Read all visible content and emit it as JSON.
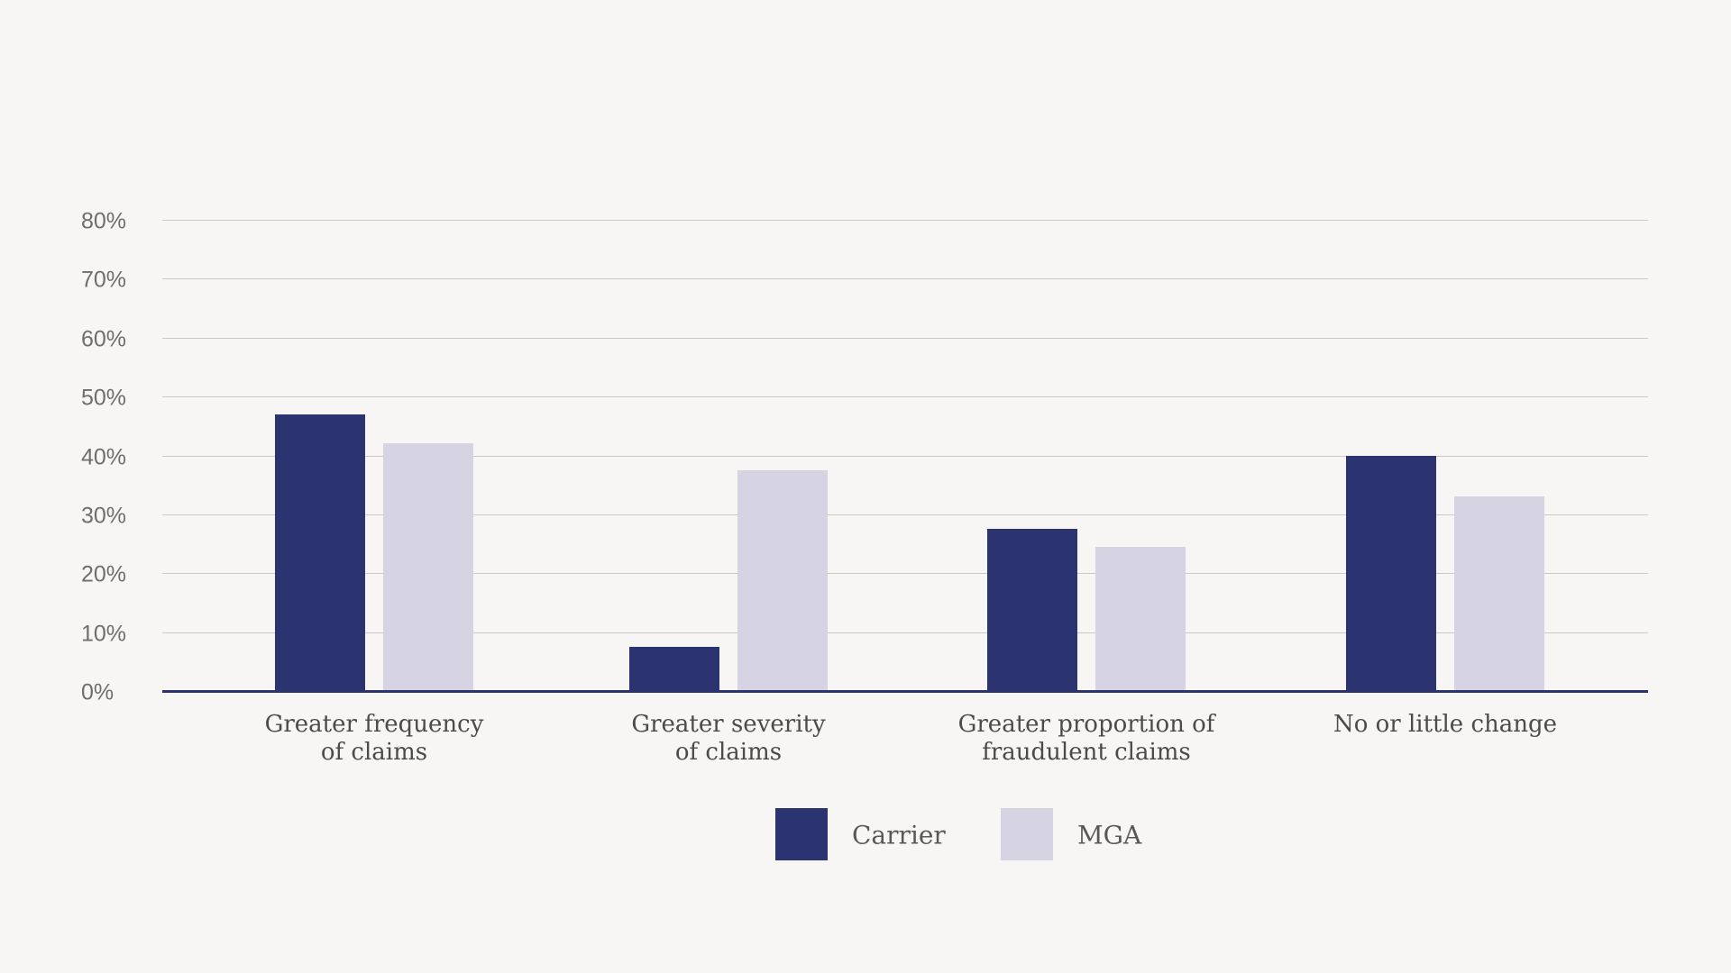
{
  "chart_data": {
    "type": "bar",
    "categories": [
      "Greater frequency of claims",
      "Greater severity of claims",
      "Greater proportion of fraudulent claims",
      "No or little change"
    ],
    "category_lines": [
      [
        "Greater frequency",
        "of claims"
      ],
      [
        "Greater severity",
        "of claims"
      ],
      [
        "Greater proportion of",
        "fraudulent claims"
      ],
      [
        "No or little change"
      ]
    ],
    "series": [
      {
        "name": "Carrier",
        "color": "#2b3371",
        "values": [
          47,
          7.5,
          27.5,
          40
        ]
      },
      {
        "name": "MGA",
        "color": "#d6d4e3",
        "values": [
          42,
          37.5,
          24.5,
          33
        ]
      }
    ],
    "y_axis": {
      "tick_labels": [
        "0%",
        "10%",
        "20%",
        "30%",
        "40%",
        "50%",
        "60%",
        "70%",
        "80%"
      ],
      "min": 0,
      "max": 80,
      "step": 10
    },
    "grid": "horizontal",
    "legend": {
      "position": "bottom",
      "entries": [
        "Carrier",
        "MGA"
      ]
    },
    "colors": {
      "background": "#f7f6f5",
      "gridline": "#c9c8c7",
      "axis_line": "#2b3371",
      "tick_text": "#6e6e6e",
      "category_text": "#4b4b4b",
      "legend_text": "#585858"
    }
  }
}
